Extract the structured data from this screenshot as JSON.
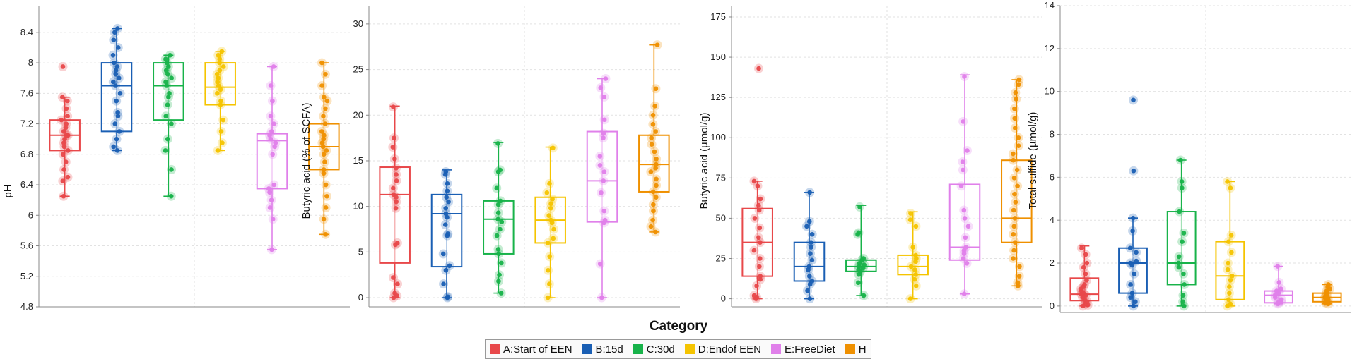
{
  "x_axis_title": "Category",
  "legend": {
    "entries": [
      {
        "label": "A:Start of EEN",
        "color": "#e8484a"
      },
      {
        "label": "B:15d",
        "color": "#1a5fb4"
      },
      {
        "label": "C:30d",
        "color": "#18b34a"
      },
      {
        "label": "D:Endof EEN",
        "color": "#f5c400"
      },
      {
        "label": "E:FreeDiet",
        "color": "#e080ea"
      },
      {
        "label": "H",
        "color": "#ef9000"
      }
    ]
  },
  "chart_data": [
    {
      "type": "box",
      "ylabel": "pH",
      "ylim": [
        4.8,
        8.75
      ],
      "yticks": [
        4.8,
        5.2,
        5.6,
        6,
        6.4,
        6.8,
        7.2,
        7.6,
        8,
        8.4
      ],
      "ytick_labels": [
        "4.8",
        "5.2",
        "5.6",
        "6",
        "6.4",
        "6.8",
        "7.2",
        "7.6",
        "8",
        "8.4"
      ],
      "categories": [
        "A:Start of EEN",
        "B:15d",
        "C:30d",
        "D:Endof EEN",
        "E:FreeDiet",
        "H"
      ],
      "boxes": [
        {
          "min": 6.25,
          "q1": 6.85,
          "median": 7.05,
          "q3": 7.25,
          "max": 7.55,
          "points": [
            6.25,
            6.45,
            6.5,
            6.6,
            6.7,
            6.8,
            6.85,
            6.9,
            6.95,
            7.0,
            7.05,
            7.05,
            7.1,
            7.15,
            7.2,
            7.25,
            7.3,
            7.4,
            7.5,
            7.55,
            7.95
          ]
        },
        {
          "min": 6.85,
          "q1": 7.1,
          "median": 7.7,
          "q3": 8.0,
          "max": 8.45,
          "points": [
            6.85,
            6.9,
            7.0,
            7.1,
            7.2,
            7.3,
            7.35,
            7.5,
            7.6,
            7.7,
            7.75,
            7.8,
            7.85,
            7.9,
            7.95,
            8.0,
            8.1,
            8.2,
            8.3,
            8.4,
            8.45
          ]
        },
        {
          "min": 6.25,
          "q1": 7.25,
          "median": 7.7,
          "q3": 8.0,
          "max": 8.1,
          "points": [
            6.25,
            6.6,
            6.85,
            7.0,
            7.2,
            7.3,
            7.45,
            7.55,
            7.6,
            7.7,
            7.75,
            7.8,
            7.85,
            7.9,
            7.95,
            8.0,
            8.05,
            8.1
          ]
        },
        {
          "min": 6.85,
          "q1": 7.45,
          "median": 7.68,
          "q3": 8.0,
          "max": 8.15,
          "points": [
            6.85,
            6.95,
            7.1,
            7.25,
            7.45,
            7.5,
            7.6,
            7.65,
            7.7,
            7.75,
            7.8,
            7.85,
            7.9,
            7.95,
            8.0,
            8.05,
            8.1,
            8.15
          ]
        },
        {
          "min": 5.55,
          "q1": 6.35,
          "median": 6.98,
          "q3": 7.07,
          "max": 7.95,
          "points": [
            5.55,
            5.95,
            6.1,
            6.2,
            6.3,
            6.35,
            6.4,
            6.8,
            6.9,
            6.95,
            7.0,
            7.05,
            7.1,
            7.2,
            7.3,
            7.5,
            7.7,
            7.95
          ]
        },
        {
          "min": 5.75,
          "q1": 6.6,
          "median": 6.9,
          "q3": 7.2,
          "max": 8.0,
          "points": [
            5.75,
            5.95,
            6.1,
            6.25,
            6.4,
            6.55,
            6.6,
            6.7,
            6.8,
            6.85,
            6.9,
            6.95,
            7.0,
            7.05,
            7.1,
            7.2,
            7.3,
            7.4,
            7.5,
            7.55,
            7.7,
            7.85,
            8.0
          ]
        }
      ]
    },
    {
      "type": "box",
      "ylabel": "Butyric acid (% of SCFA)",
      "ylim": [
        -1,
        32
      ],
      "yticks": [
        0,
        5,
        10,
        15,
        20,
        25,
        30
      ],
      "ytick_labels": [
        "0",
        "5",
        "10",
        "15",
        "20",
        "25",
        "30"
      ],
      "categories": [
        "A:Start of EEN",
        "B:15d",
        "C:30d",
        "D:Endof EEN",
        "E:FreeDiet",
        "H"
      ],
      "boxes": [
        {
          "min": 0,
          "q1": 3.8,
          "median": 11.3,
          "q3": 14.3,
          "max": 21,
          "points": [
            0,
            0.2,
            0.5,
            1.5,
            2.2,
            5.8,
            6.0,
            9.8,
            10.5,
            11.0,
            11.3,
            12.0,
            12.8,
            13.5,
            14.2,
            15.2,
            16.5,
            17.5,
            20.9
          ]
        },
        {
          "min": 0,
          "q1": 3.4,
          "median": 9.2,
          "q3": 11.3,
          "max": 14,
          "points": [
            0,
            0.1,
            1.5,
            3.0,
            3.5,
            4.8,
            6.8,
            7.0,
            8.0,
            8.8,
            9.2,
            9.8,
            10.5,
            11.0,
            11.7,
            12.5,
            13.5,
            13.8
          ]
        },
        {
          "min": 0.5,
          "q1": 4.8,
          "median": 8.6,
          "q3": 10.6,
          "max": 17,
          "points": [
            0.5,
            1.8,
            2.5,
            3.8,
            4.8,
            5.3,
            6.8,
            7.5,
            8.3,
            8.6,
            9.3,
            10.2,
            10.6,
            12.0,
            13.8,
            14.0,
            16.9
          ]
        },
        {
          "min": 0,
          "q1": 6.0,
          "median": 8.5,
          "q3": 11.0,
          "max": 16.5,
          "points": [
            0,
            1.5,
            3.0,
            4.5,
            6.0,
            6.5,
            7.5,
            8.2,
            8.5,
            9.0,
            9.8,
            10.3,
            10.8,
            11.5,
            12.5,
            16.4
          ]
        },
        {
          "min": 0,
          "q1": 8.3,
          "median": 12.8,
          "q3": 18.2,
          "max": 24,
          "points": [
            0,
            3.7,
            8.2,
            8.5,
            9.5,
            11.5,
            12.8,
            13.8,
            14.5,
            15.5,
            17.5,
            18.0,
            19.5,
            22.0,
            23.0,
            24.0
          ]
        },
        {
          "min": 7.2,
          "q1": 11.6,
          "median": 14.6,
          "q3": 17.8,
          "max": 27.7,
          "points": [
            7.2,
            7.8,
            8.5,
            9.5,
            10.2,
            11.0,
            11.6,
            12.3,
            13.0,
            13.8,
            14.2,
            14.6,
            15.2,
            16.0,
            16.8,
            17.5,
            18.2,
            19.0,
            20.0,
            21.0,
            22.9,
            27.7
          ]
        }
      ]
    },
    {
      "type": "box",
      "ylabel": "Butyric acid (µmol/g)",
      "ylim": [
        -5,
        182
      ],
      "yticks": [
        0,
        25,
        50,
        75,
        100,
        125,
        150,
        175
      ],
      "ytick_labels": [
        "0",
        "25",
        "50",
        "75",
        "100",
        "125",
        "150",
        "175"
      ],
      "categories": [
        "A:Start of EEN",
        "B:15d",
        "C:30d",
        "D:Endof EEN",
        "E:FreeDiet",
        "H"
      ],
      "boxes": [
        {
          "min": 0,
          "q1": 14,
          "median": 35,
          "q3": 56,
          "max": 73,
          "points": [
            0,
            1,
            2,
            8,
            12,
            14,
            20,
            25,
            30,
            35,
            38,
            44,
            50,
            55,
            58,
            62,
            70,
            73,
            143
          ]
        },
        {
          "min": 0,
          "q1": 11,
          "median": 20,
          "q3": 35,
          "max": 66,
          "points": [
            0,
            5,
            9,
            11,
            14,
            18,
            20,
            24,
            28,
            32,
            35,
            40,
            45,
            48,
            66
          ]
        },
        {
          "min": 2,
          "q1": 17,
          "median": 20,
          "q3": 24,
          "max": 58,
          "points": [
            2,
            10,
            15,
            17,
            18,
            19,
            20,
            21,
            22,
            24,
            25,
            40,
            41,
            57
          ]
        },
        {
          "min": 0,
          "q1": 15,
          "median": 20,
          "q3": 27,
          "max": 54,
          "points": [
            0,
            8,
            12,
            15,
            18,
            20,
            23,
            25,
            27,
            32,
            45,
            49,
            53
          ]
        },
        {
          "min": 3,
          "q1": 24,
          "median": 32,
          "q3": 71,
          "max": 139,
          "points": [
            3,
            22,
            25,
            28,
            30,
            32,
            38,
            45,
            50,
            55,
            70,
            80,
            85,
            92,
            110,
            138
          ]
        },
        {
          "min": 8,
          "q1": 35,
          "median": 50,
          "q3": 86,
          "max": 136,
          "points": [
            8,
            10,
            14,
            20,
            25,
            30,
            35,
            40,
            45,
            50,
            55,
            60,
            65,
            70,
            75,
            80,
            86,
            90,
            95,
            100,
            106,
            112,
            118,
            124,
            128,
            133,
            136
          ]
        }
      ]
    },
    {
      "type": "box",
      "ylabel": "Total sulfide (µmol/g)",
      "ylim": [
        -0.3,
        14
      ],
      "yticks": [
        0,
        2,
        4,
        6,
        8,
        10,
        12,
        14
      ],
      "ytick_labels": [
        "0",
        "2",
        "4",
        "6",
        "8",
        "10",
        "12",
        "14"
      ],
      "categories": [
        "A:Start of EEN",
        "B:15d",
        "C:30d",
        "D:Endof EEN",
        "E:FreeDiet",
        "H"
      ],
      "boxes": [
        {
          "min": 0,
          "q1": 0.25,
          "median": 0.55,
          "q3": 1.3,
          "max": 2.8,
          "points": [
            0,
            0.05,
            0.1,
            0.2,
            0.3,
            0.4,
            0.5,
            0.55,
            0.6,
            0.7,
            0.8,
            0.9,
            1.0,
            1.2,
            1.5,
            1.8,
            2.0,
            2.4,
            2.7
          ]
        },
        {
          "min": 0,
          "q1": 0.6,
          "median": 2.0,
          "q3": 2.7,
          "max": 4.1,
          "points": [
            0,
            0.2,
            0.4,
            0.6,
            1.0,
            1.5,
            1.9,
            2.0,
            2.1,
            2.5,
            2.7,
            3.5,
            4.1,
            6.3,
            9.6
          ]
        },
        {
          "min": 0,
          "q1": 1.0,
          "median": 2.0,
          "q3": 4.4,
          "max": 6.8,
          "points": [
            0,
            0.2,
            0.5,
            1.0,
            1.5,
            1.8,
            2.0,
            2.3,
            3.0,
            3.4,
            4.4,
            5.5,
            5.8,
            6.8
          ]
        },
        {
          "min": 0,
          "q1": 0.3,
          "median": 1.4,
          "q3": 3.0,
          "max": 5.8,
          "points": [
            0,
            0.1,
            0.3,
            0.6,
            0.9,
            1.2,
            1.4,
            1.7,
            2.0,
            2.5,
            3.0,
            3.3,
            5.5,
            5.8
          ]
        },
        {
          "min": 0.1,
          "q1": 0.15,
          "median": 0.5,
          "q3": 0.7,
          "max": 1.85,
          "points": [
            0.1,
            0.15,
            0.2,
            0.3,
            0.4,
            0.5,
            0.6,
            0.7,
            0.8,
            1.1,
            1.85
          ]
        },
        {
          "min": 0.1,
          "q1": 0.2,
          "median": 0.4,
          "q3": 0.6,
          "max": 1.0,
          "points": [
            0.1,
            0.15,
            0.2,
            0.25,
            0.3,
            0.35,
            0.4,
            0.45,
            0.5,
            0.6,
            0.7,
            0.8,
            0.9,
            1.0
          ]
        }
      ]
    }
  ]
}
